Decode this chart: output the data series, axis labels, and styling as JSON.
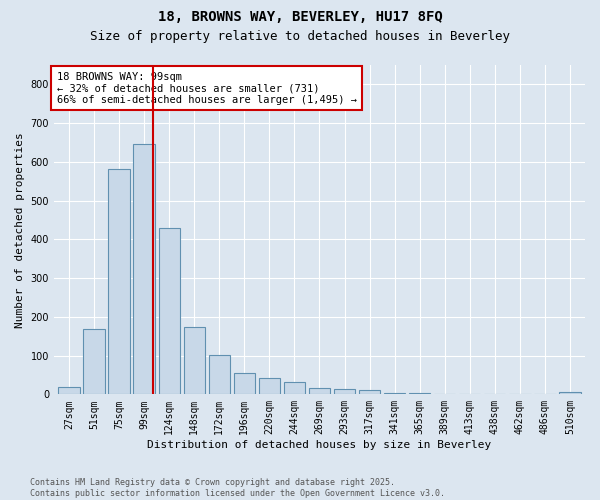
{
  "title1": "18, BROWNS WAY, BEVERLEY, HU17 8FQ",
  "title2": "Size of property relative to detached houses in Beverley",
  "xlabel": "Distribution of detached houses by size in Beverley",
  "ylabel": "Number of detached properties",
  "categories": [
    "27sqm",
    "51sqm",
    "75sqm",
    "99sqm",
    "124sqm",
    "148sqm",
    "172sqm",
    "196sqm",
    "220sqm",
    "244sqm",
    "269sqm",
    "293sqm",
    "317sqm",
    "341sqm",
    "365sqm",
    "389sqm",
    "413sqm",
    "438sqm",
    "462sqm",
    "486sqm",
    "510sqm"
  ],
  "values": [
    20,
    168,
    582,
    645,
    430,
    175,
    102,
    54,
    41,
    32,
    17,
    14,
    10,
    3,
    4,
    1,
    1,
    0,
    0,
    0,
    5
  ],
  "bar_color": "#c8d8e8",
  "bar_edge_color": "#6090b0",
  "vline_index": 3,
  "vline_color": "#cc0000",
  "annotation_text": "18 BROWNS WAY: 99sqm\n← 32% of detached houses are smaller (731)\n66% of semi-detached houses are larger (1,495) →",
  "annotation_box_color": "#ffffff",
  "annotation_box_edge_color": "#cc0000",
  "footer_text": "Contains HM Land Registry data © Crown copyright and database right 2025.\nContains public sector information licensed under the Open Government Licence v3.0.",
  "ylim": [
    0,
    850
  ],
  "yticks": [
    0,
    100,
    200,
    300,
    400,
    500,
    600,
    700,
    800
  ],
  "background_color": "#dce6f0",
  "grid_color": "#ffffff",
  "title1_fontsize": 10,
  "title2_fontsize": 9,
  "ylabel_fontsize": 8,
  "xlabel_fontsize": 8,
  "tick_fontsize": 7,
  "footer_fontsize": 6,
  "annot_fontsize": 7.5
}
